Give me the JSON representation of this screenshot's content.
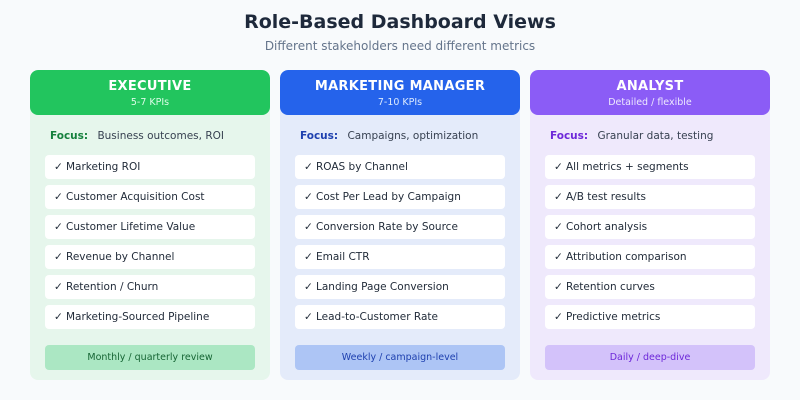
{
  "header": {
    "title": "Role-Based Dashboard Views",
    "subtitle": "Different stakeholders need different metrics"
  },
  "colors": {
    "executive": "#22c55e",
    "marketing_manager": "#2563eb",
    "analyst": "#8b5cf6"
  },
  "check_glyph": "✓",
  "cards": [
    {
      "role": "EXECUTIVE",
      "kpi_count": "5-7 KPIs",
      "focus_label": "Focus:",
      "focus_text": "Business outcomes, ROI",
      "metrics": [
        "Marketing ROI",
        "Customer Acquisition Cost",
        "Customer Lifetime Value",
        "Revenue by Channel",
        "Retention / Churn",
        "Marketing-Sourced Pipeline"
      ],
      "cadence": "Monthly / quarterly review"
    },
    {
      "role": "MARKETING MANAGER",
      "kpi_count": "7-10 KPIs",
      "focus_label": "Focus:",
      "focus_text": "Campaigns, optimization",
      "metrics": [
        "ROAS by Channel",
        "Cost Per Lead by Campaign",
        "Conversion Rate by Source",
        "Email CTR",
        "Landing Page Conversion",
        "Lead-to-Customer Rate"
      ],
      "cadence": "Weekly / campaign-level"
    },
    {
      "role": "ANALYST",
      "kpi_count": "Detailed / flexible",
      "focus_label": "Focus:",
      "focus_text": "Granular data, testing",
      "metrics": [
        "All metrics + segments",
        "A/B test results",
        "Cohort analysis",
        "Attribution comparison",
        "Retention curves",
        "Predictive metrics"
      ],
      "cadence": "Daily / deep-dive"
    }
  ]
}
